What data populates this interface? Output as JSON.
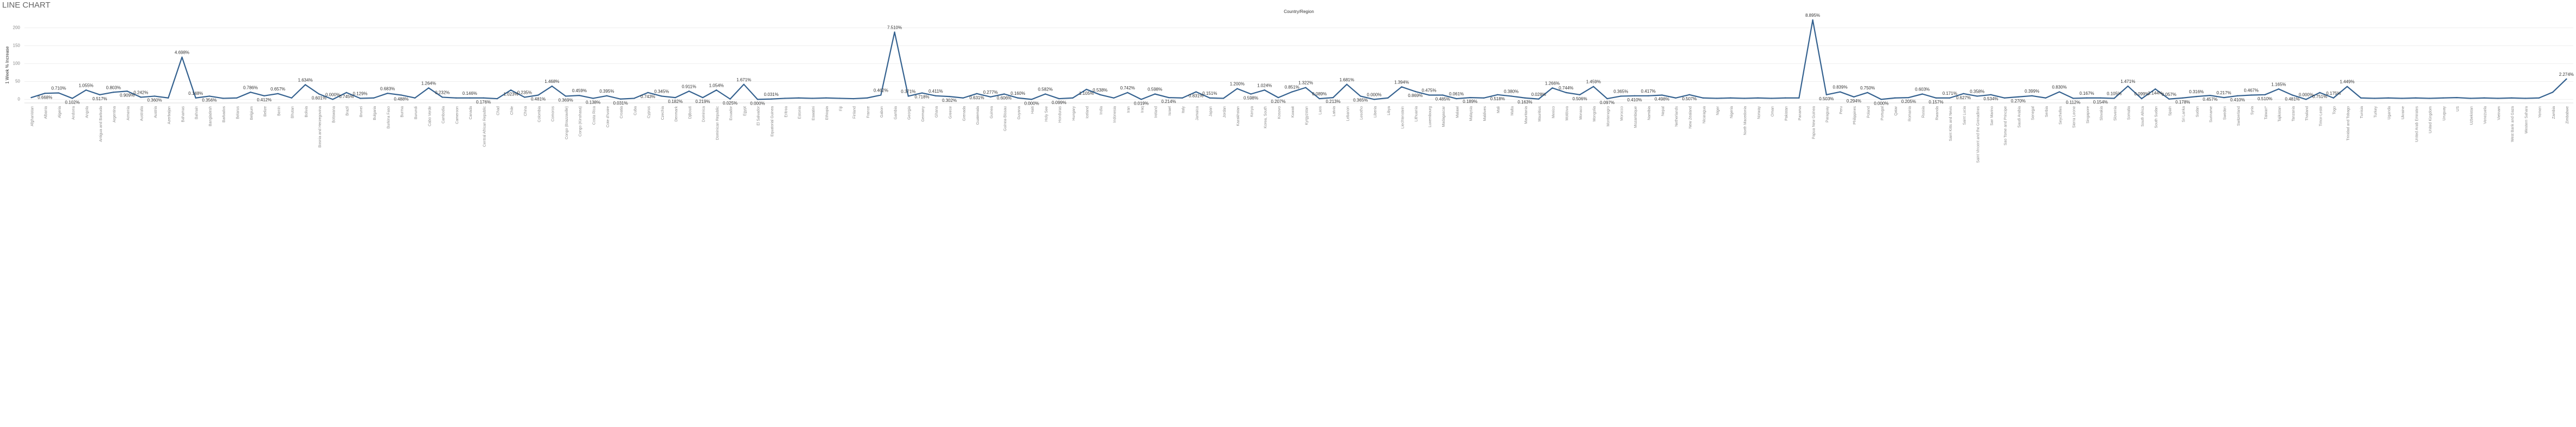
{
  "chart_data": {
    "type": "line",
    "title": "LINE CHART",
    "subtitle": "Country/Region",
    "y_label": "1 Week % Increase",
    "color": "#34618f",
    "grid": true,
    "ylim": [
      -10,
      240
    ],
    "yticks": [
      0,
      50,
      100,
      150,
      200
    ],
    "categories": [
      "Afghanistan",
      "Albania",
      "Algeria",
      "Andorra",
      "Angola",
      "Antigua and Barbuda",
      "Argentina",
      "Armenia",
      "Australia",
      "Austria",
      "Azerbaijan",
      "Bahamas",
      "Bahrain",
      "Bangladesh",
      "Barbados",
      "Belarus",
      "Belgium",
      "Belize",
      "Benin",
      "Bhutan",
      "Bolivia",
      "Bosnia and Herzegovina",
      "Botswana",
      "Brazil",
      "Brunei",
      "Bulgaria",
      "Burkina Faso",
      "Burma",
      "Burundi",
      "Cabo Verde",
      "Cambodia",
      "Cameroon",
      "Canada",
      "Central African Republic",
      "Chad",
      "Chile",
      "China",
      "Colombia",
      "Comoros",
      "Congo (Brazzaville)",
      "Congo (Kinshasa)",
      "Costa Rica",
      "Cote d'Ivoire",
      "Croatia",
      "Cuba",
      "Cyprus",
      "Czechia",
      "Denmark",
      "Djibouti",
      "Dominica",
      "Dominican Republic",
      "Ecuador",
      "Egypt",
      "El Salvador",
      "Equatorial Guinea",
      "Eritrea",
      "Estonia",
      "Eswatini",
      "Ethiopia",
      "Fiji",
      "Finland",
      "France",
      "Gabon",
      "Gambia",
      "Georgia",
      "Germany",
      "Ghana",
      "Greece",
      "Grenada",
      "Guatemala",
      "Guinea",
      "Guinea-Bissau",
      "Guyana",
      "Haiti",
      "Holy See",
      "Honduras",
      "Hungary",
      "Iceland",
      "India",
      "Indonesia",
      "Iran",
      "Iraq",
      "Ireland",
      "Israel",
      "Italy",
      "Jamaica",
      "Japan",
      "Jordan",
      "Kazakhstan",
      "Kenya",
      "Korea, South",
      "Kosovo",
      "Kuwait",
      "Kyrgyzstan",
      "Laos",
      "Latvia",
      "Lebanon",
      "Lesotho",
      "Liberia",
      "Libya",
      "Liechtenstein",
      "Lithuania",
      "Luxembourg",
      "Madagascar",
      "Malawi",
      "Malaysia",
      "Maldives",
      "Mali",
      "Malta",
      "Mauritania",
      "Mauritius",
      "Mexico",
      "Moldova",
      "Monaco",
      "Mongolia",
      "Montenegro",
      "Morocco",
      "Mozambique",
      "Namibia",
      "Nepal",
      "Netherlands",
      "New Zealand",
      "Nicaragua",
      "Niger",
      "Nigeria",
      "North Macedonia",
      "Norway",
      "Oman",
      "Pakistan",
      "Panama",
      "Papua New Guinea",
      "Paraguay",
      "Peru",
      "Philippines",
      "Poland",
      "Portugal",
      "Qatar",
      "Romania",
      "Russia",
      "Rwanda",
      "Saint Kitts and Nevis",
      "Saint Lucia",
      "Saint Vincent and the Grenadines",
      "San Marino",
      "Sao Tome and Principe",
      "Saudi Arabia",
      "Senegal",
      "Serbia",
      "Seychelles",
      "Sierra Leone",
      "Singapore",
      "Slovakia",
      "Slovenia",
      "Somalia",
      "South Africa",
      "South Sudan",
      "Spain",
      "Sri Lanka",
      "Sudan",
      "Suriname",
      "Sweden",
      "Switzerland",
      "Syria",
      "Taiwan*",
      "Tajikistan",
      "Tanzania",
      "Thailand",
      "Timor-Leste",
      "Togo",
      "Trinidad and Tobago",
      "Tunisia",
      "Turkey",
      "Uganda",
      "Ukraine",
      "United Arab Emirates",
      "United Kingdom",
      "Uruguay",
      "US",
      "Uzbekistan",
      "Venezuela",
      "Vietnam",
      "West Bank and Gaza",
      "Western Sahara",
      "Yemen",
      "Zambia",
      "Zimbabwe"
    ],
    "values": [
      5,
      17,
      18,
      3,
      26,
      13,
      20,
      23,
      6,
      9,
      4,
      118,
      4,
      9,
      3,
      4,
      20,
      10,
      16,
      4,
      41,
      15,
      0,
      19,
      3,
      4,
      17,
      12,
      4,
      32,
      6,
      4,
      4,
      4,
      2,
      26,
      6,
      12,
      37,
      9,
      11,
      3,
      10,
      1,
      3,
      19,
      9,
      5,
      23,
      5,
      26,
      1,
      42,
      0,
      1,
      3,
      4,
      3,
      4,
      3,
      2,
      4,
      12,
      188,
      9,
      18,
      10,
      8,
      4,
      16,
      7,
      15,
      4,
      0,
      15,
      2,
      4,
      28,
      13,
      4,
      19,
      0,
      15,
      5,
      4,
      21,
      4,
      3,
      30,
      15,
      26,
      5,
      21,
      33,
      2,
      5,
      42,
      9,
      0,
      4,
      35,
      22,
      12,
      12,
      2,
      5,
      4,
      13,
      9,
      4,
      1,
      32,
      19,
      13,
      36,
      2,
      9,
      10,
      10,
      12,
      4,
      13,
      4,
      3,
      4,
      3,
      4,
      3,
      4,
      4,
      222,
      13,
      21,
      7,
      19,
      0,
      4,
      5,
      15,
      4,
      4,
      16,
      9,
      13,
      4,
      7,
      10,
      4,
      21,
      3,
      4,
      4,
      3,
      37,
      2,
      29,
      1,
      4,
      8,
      11,
      5,
      10,
      12,
      13,
      29,
      12,
      0,
      19,
      4,
      36,
      4,
      3,
      4,
      3,
      4,
      3,
      4,
      5,
      3,
      4,
      3,
      4,
      3,
      4,
      20,
      57
    ],
    "point_labels": [
      null,
      "0.668%",
      "0.710%",
      "0.102%",
      "1.055%",
      "0.517%",
      "0.803%",
      "0.909%",
      "0.242%",
      "0.360%",
      null,
      "4.698%",
      "0.148%",
      "0.356%",
      null,
      null,
      "0.786%",
      "0.412%",
      "0.657%",
      null,
      "1.634%",
      "0.601%",
      "0.000%",
      "0.745%",
      "0.129%",
      null,
      "0.683%",
      "0.488%",
      null,
      "1.264%",
      "0.232%",
      null,
      "0.146%",
      "0.176%",
      null,
      "1.023%",
      "0.235%",
      "0.481%",
      "1.468%",
      "0.369%",
      "0.459%",
      "0.138%",
      "0.395%",
      "0.031%",
      null,
      "0.743%",
      "0.345%",
      "0.182%",
      "0.911%",
      "0.219%",
      "1.054%",
      "0.025%",
      "1.671%",
      "0.000%",
      "0.031%",
      null,
      null,
      null,
      null,
      null,
      null,
      null,
      "0.462%",
      "7.510%",
      "0.371%",
      "0.718%",
      "0.411%",
      "0.302%",
      null,
      "0.631%",
      "0.277%",
      "0.606%",
      "0.160%",
      "0.000%",
      "0.582%",
      "0.099%",
      null,
      "1.105%",
      "0.538%",
      null,
      "0.742%",
      "0.019%",
      "0.598%",
      "0.214%",
      null,
      "0.831%",
      "0.151%",
      null,
      "1.200%",
      "0.598%",
      "1.024%",
      "0.207%",
      "0.851%",
      "1.322%",
      "0.089%",
      "0.213%",
      "1.681%",
      "0.365%",
      "0.000%",
      null,
      "1.394%",
      "0.869%",
      "0.475%",
      "0.485%",
      "0.061%",
      "0.189%",
      null,
      "0.518%",
      "0.380%",
      "0.163%",
      "0.028%",
      "1.266%",
      "0.744%",
      "0.506%",
      "1.459%",
      "0.097%",
      "0.365%",
      "0.410%",
      "0.417%",
      "0.498%",
      null,
      "0.507%",
      null,
      null,
      null,
      null,
      null,
      null,
      null,
      null,
      "8.895%",
      "0.503%",
      "0.839%",
      "0.294%",
      "0.750%",
      "0.000%",
      null,
      "0.205%",
      "0.603%",
      "0.157%",
      "0.171%",
      "0.627%",
      "0.358%",
      "0.534%",
      null,
      "0.270%",
      "0.399%",
      null,
      "0.830%",
      "0.112%",
      "0.167%",
      "0.154%",
      "0.105%",
      "1.471%",
      "0.099%",
      "1.144%",
      "0.057%",
      "0.178%",
      "0.316%",
      "0.457%",
      "0.217%",
      "0.410%",
      "0.467%",
      "0.510%",
      "1.165%",
      "0.481%",
      "0.000%",
      "0.751%",
      "0.175%",
      "1.449%",
      null,
      null,
      null,
      null,
      null,
      null,
      null,
      null,
      null,
      null,
      null,
      null,
      null,
      null,
      null,
      "2.274%"
    ]
  }
}
